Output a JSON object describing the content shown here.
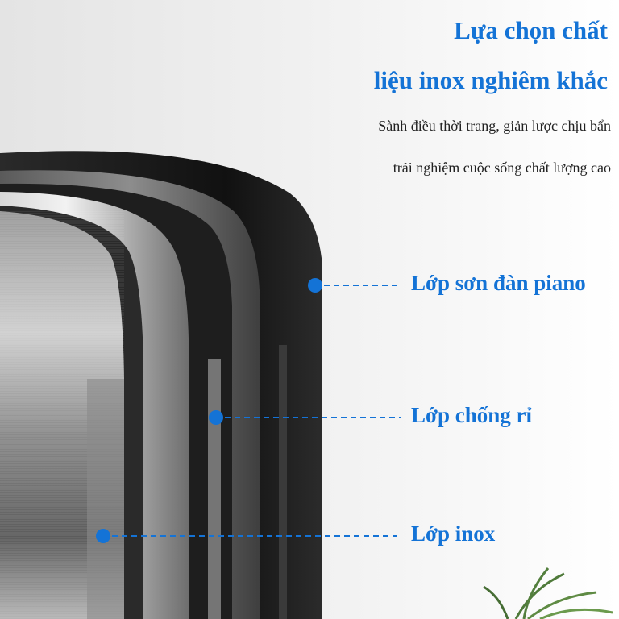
{
  "heading": {
    "line1": "Lựa chọn chất",
    "line2": "liệu inox nghiêm khắc"
  },
  "subheading": {
    "line1": "Sành điều thời trang, giản lược chịu bẩn",
    "line2": "trải nghiệm cuộc sống chất lượng cao"
  },
  "layers": [
    {
      "label": "Lớp sơn đàn piano"
    },
    {
      "label": "Lớp chống rỉ"
    },
    {
      "label": "Lớp inox"
    }
  ],
  "colors": {
    "accent": "#1473d6",
    "background": "#f1f1f1",
    "paint_layer": "#1a1a1a"
  }
}
